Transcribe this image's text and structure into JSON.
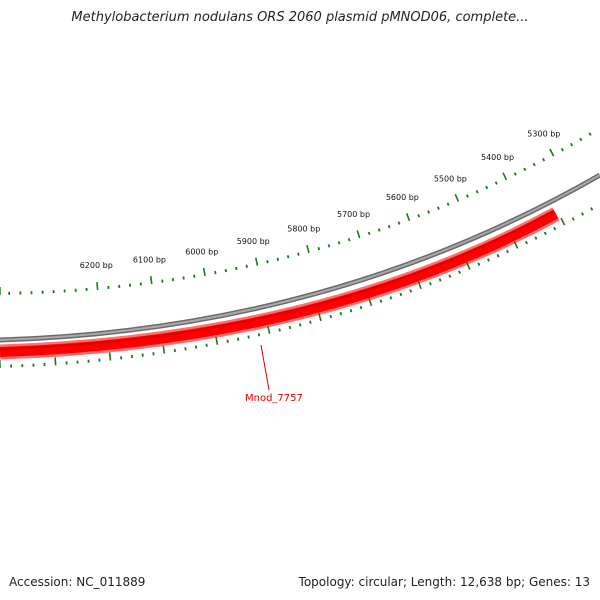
{
  "title": "Methylobacterium nodulans ORS 2060 plasmid pMNOD06, complete...",
  "accession": "Accession: NC_011889",
  "summary": "Topology: circular; Length: 12,638 bp; Genes: 13",
  "colors": {
    "backbone": "#7f7f7f",
    "gene": "#ff0000",
    "gene_dark": "#bb0000",
    "ticks": "#1a7a1a",
    "gene_label": "#dd0000"
  },
  "scale": {
    "tick_labels": [
      "5300 bp",
      "5400 bp",
      "5500 bp",
      "5600 bp",
      "5700 bp",
      "5800 bp",
      "5900 bp",
      "6000 bp",
      "6100 bp",
      "6200 bp"
    ]
  },
  "genes": [
    {
      "name": "Mnod_7757",
      "strand": "forward"
    }
  ]
}
